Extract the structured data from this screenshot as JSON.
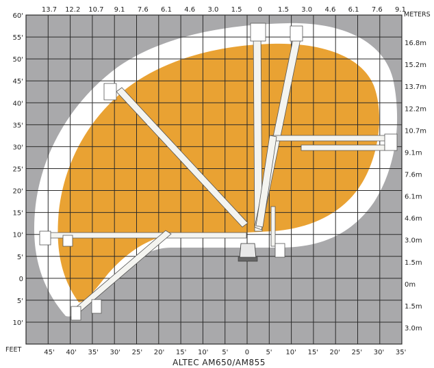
{
  "title": "ALTEC AM650/AM855",
  "units_left": "FEET",
  "units_right": "METERS",
  "top_meter_labels": [
    "13.7",
    "12.2",
    "10.7",
    "9.1",
    "7.6",
    "6.1",
    "4.6",
    "3.0",
    "1.5",
    "0",
    "1.5",
    "3.0",
    "4.6",
    "6.1",
    "7.6",
    "9.1"
  ],
  "bottom_feet_labels": [
    "45'",
    "40'",
    "35'",
    "30'",
    "25'",
    "20'",
    "15'",
    "10'",
    "5'",
    "0",
    "5'",
    "10'",
    "15'",
    "20'",
    "25'",
    "30'",
    "35'"
  ],
  "left_feet_labels": [
    "60'",
    "55'",
    "50'",
    "45'",
    "40'",
    "35'",
    "30'",
    "25'",
    "20'",
    "15'",
    "10'",
    "5'",
    "0",
    "5'",
    "10'"
  ],
  "right_meter_labels": [
    "16.8m",
    "15.2m",
    "13.7m",
    "12.2m",
    "10.7m",
    "9.1m",
    "7.6m",
    "6.1m",
    "4.6m",
    "3.0m",
    "1.5m",
    "0m",
    "1.5m",
    "3.0m"
  ],
  "colors": {
    "background": "#ffffff",
    "grid_fill": "#a9a9ab",
    "grid_line": "#2a2a2a",
    "reach_zone": "#e9a233",
    "outer_envelope": "#ffffff",
    "boom": "#f4f4f0"
  }
}
